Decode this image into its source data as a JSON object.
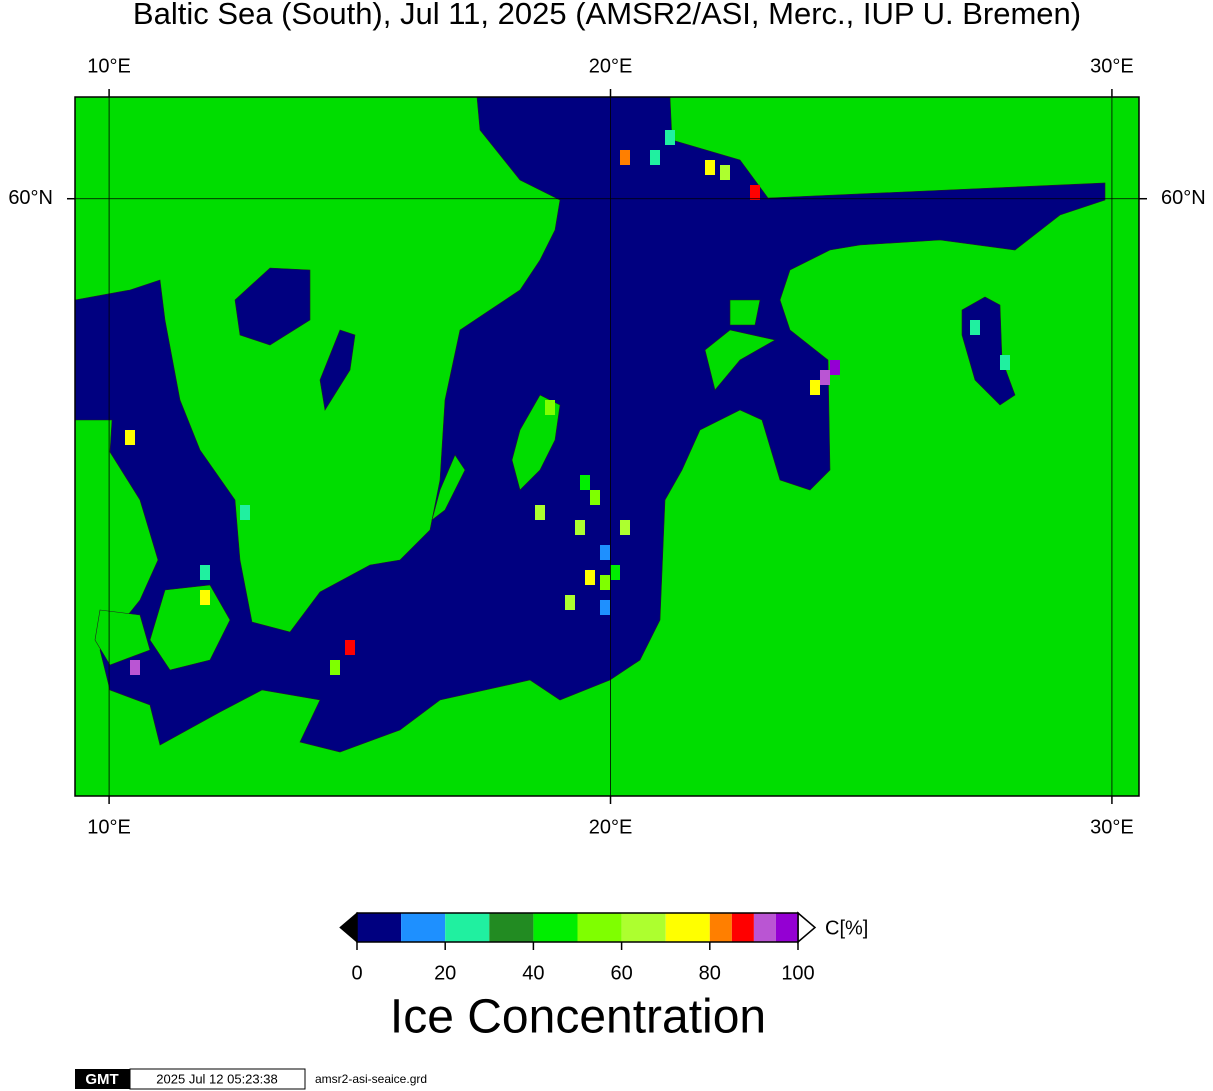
{
  "title": "Baltic Sea (South), Jul 11, 2025 (AMSR2/ASI, Merc., IUP U. Bremen)",
  "map": {
    "lon_range": [
      9.32,
      30.54
    ],
    "lat_range": [
      53.48,
      61.0
    ],
    "lon_ticks": [
      {
        "value": 10,
        "label": "10°E"
      },
      {
        "value": 20,
        "label": "20°E"
      },
      {
        "value": 30,
        "label": "30°E"
      }
    ],
    "lat_ticks": [
      {
        "value": 60,
        "label": "60°N"
      }
    ],
    "sea_color": "#000080",
    "land_color": "#00dd00"
  },
  "colorbar": {
    "bounds": [
      0,
      10,
      20,
      30,
      40,
      50,
      60,
      70,
      80,
      85,
      90,
      95,
      100
    ],
    "colors": [
      "#000080",
      "#1e90ff",
      "#20f0a0",
      "#228b22",
      "#00ee00",
      "#7fff00",
      "#adff2f",
      "#ffff00",
      "#ff7f00",
      "#ff0000",
      "#ba55d3",
      "#9400d3"
    ],
    "ticks": [
      0,
      20,
      40,
      60,
      80,
      100
    ],
    "unit": "C[%]",
    "title": "Ice Concentration"
  },
  "footer": {
    "logo": "GMT",
    "timestamp": "2025 Jul 12 05:23:38",
    "file": "amsr2-asi-seaice.grd"
  }
}
